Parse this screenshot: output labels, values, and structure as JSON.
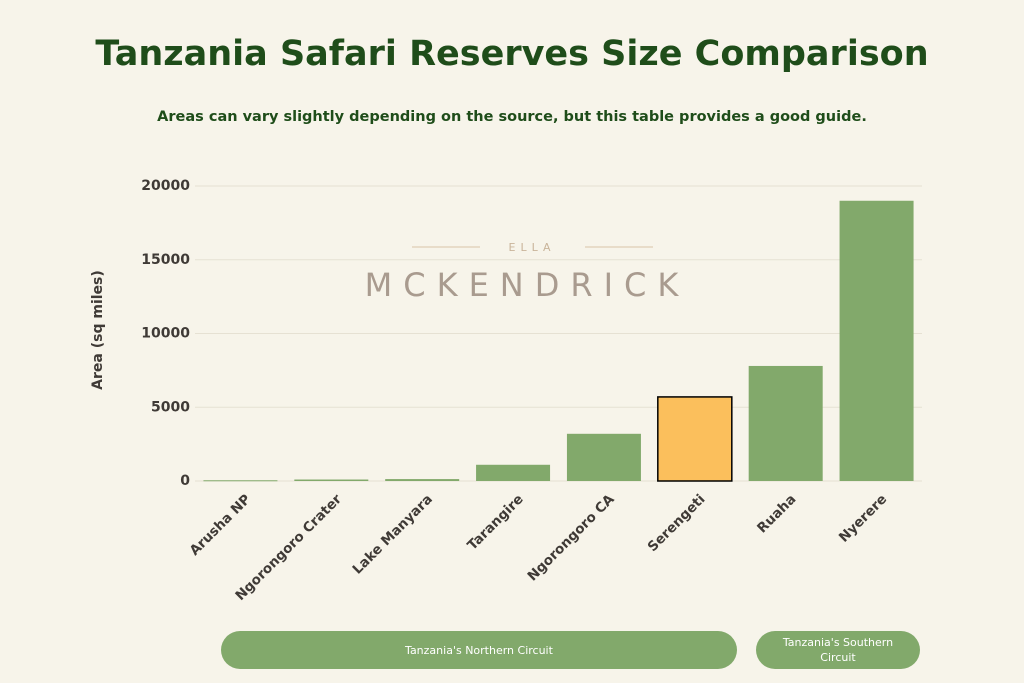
{
  "chart_data": {
    "type": "bar",
    "title": "Tanzania Safari Reserves Size Comparison",
    "subtitle": "Areas can vary slightly depending on the source, but this table provides a good guide.",
    "ylabel": "Area (sq miles)",
    "categories": [
      "Arusha NP",
      "Ngorongoro Crater",
      "Lake Manyara",
      "Tarangire",
      "Ngorongoro CA",
      "Serengeti",
      "Ruaha",
      "Nyerere"
    ],
    "values": [
      50,
      100,
      130,
      1100,
      3200,
      5700,
      7800,
      19000
    ],
    "colors": [
      "#82a96b",
      "#82a96b",
      "#82a96b",
      "#82a96b",
      "#82a96b",
      "#fbbf5c",
      "#82a96b",
      "#82a96b"
    ],
    "highlight": {
      "category": "Serengeti",
      "edgecolor": "#000000"
    },
    "ylim": [
      0,
      20000
    ],
    "yticks": [
      0,
      5000,
      10000,
      15000,
      20000
    ],
    "grid": true,
    "annotations": [
      "Tanzania's Northern Circuit",
      "Tanzania's Southern Circuit"
    ],
    "watermark": {
      "top": "ELLA",
      "main": "MCKENDRICK"
    }
  }
}
